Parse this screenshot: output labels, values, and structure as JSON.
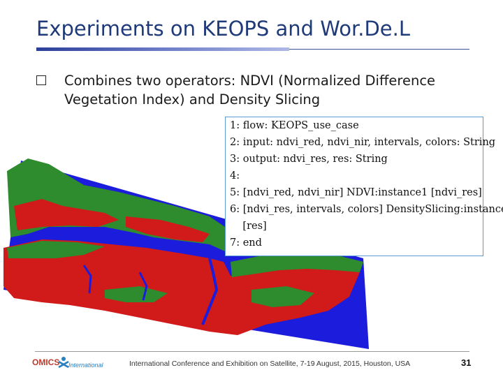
{
  "slide": {
    "title": "Experiments on KEOPS and Wor.De.L",
    "bullet": "Combines two operators: NDVI (Normalized Difference Vegetation Index) and Density Slicing"
  },
  "code": {
    "lines": [
      "1: flow: KEOPS_use_case",
      "2: input: ndvi_red, ndvi_nir, intervals, colors: String",
      "3: output: ndvi_res, res: String",
      "4:",
      "5: [ndvi_red, ndvi_nir] NDVI:instance1 [ndvi_res]",
      "6: [ndvi_res, intervals, colors] DensitySlicing:instance2",
      "    [res]",
      "7: end"
    ]
  },
  "footer": {
    "logo_text": "OMICS",
    "logo_subtext": "International",
    "text": "International Conference and Exhibition on Satellite, 7-19 August, 2015, Houston, USA",
    "page_number": "31"
  },
  "colors": {
    "title": "#1f3a79",
    "map_water": "#1c1cdc",
    "map_green": "#2e8b2e",
    "map_red": "#d11a1a"
  }
}
